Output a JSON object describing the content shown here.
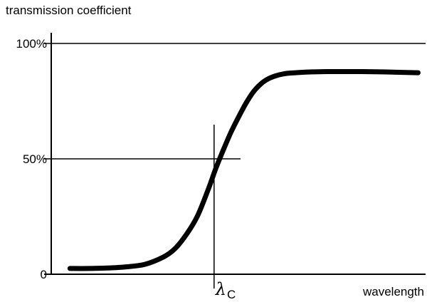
{
  "chart_data": {
    "type": "line",
    "ylabel": "transmission coefficient",
    "xlabel": "wavelength",
    "yticks": [
      {
        "label": "100%",
        "value": 100
      },
      {
        "label": "50%",
        "value": 50
      },
      {
        "label": "0",
        "value": 0
      }
    ],
    "ylim": [
      0,
      100
    ],
    "xlim": [
      0,
      100
    ],
    "grid": false,
    "series": [
      {
        "color": "#000000",
        "x": [
          5,
          10,
          15,
          20,
          25,
          30,
          33,
          36,
          39,
          42,
          44,
          46,
          48,
          50,
          52,
          54,
          56,
          58,
          60,
          62,
          64,
          67,
          70,
          74,
          78,
          83,
          88,
          93,
          98
        ],
        "y": [
          2.5,
          2.5,
          2.7,
          3.2,
          4.3,
          7.5,
          11,
          17,
          25,
          37,
          46,
          54,
          61.5,
          68,
          74,
          79,
          82.5,
          84.7,
          86,
          86.8,
          87.2,
          87.5,
          87.7,
          87.8,
          87.8,
          87.8,
          87.7,
          87.5,
          87.3
        ]
      }
    ],
    "annotations": {
      "cutoff_symbol": "λ",
      "cutoff_subscript": "C",
      "cutoff_x": 43.5,
      "half_level": 50,
      "full_level": 100
    }
  }
}
